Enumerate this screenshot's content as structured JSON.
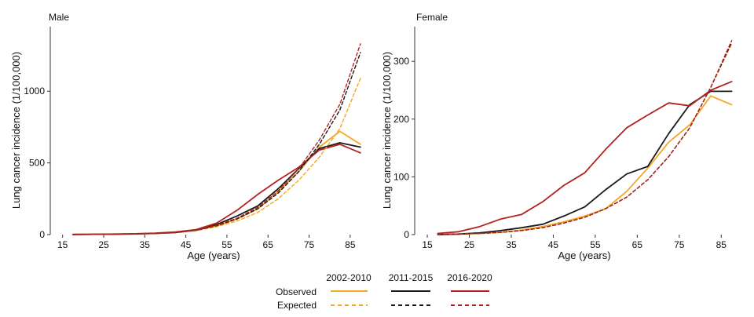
{
  "chart_data": [
    {
      "type": "line",
      "title": "Male",
      "xlabel": "Age (years)",
      "ylabel": "Lung cancer incidence (1/100,000)",
      "xlim": [
        12,
        90
      ],
      "ylim": [
        0,
        1450
      ],
      "xticks": [
        15,
        25,
        35,
        45,
        55,
        65,
        75,
        85
      ],
      "yticks": [
        0,
        500,
        1000
      ],
      "grid": false,
      "x": [
        17.5,
        22.5,
        27.5,
        32.5,
        37.5,
        42.5,
        47.5,
        52.5,
        57.5,
        62.5,
        67.5,
        72.5,
        77.5,
        82.5,
        87.5
      ],
      "series": [
        {
          "name": "2002-2010",
          "style": "observed",
          "color": "#F5A623",
          "values": [
            1,
            2,
            3,
            5,
            8,
            15,
            30,
            60,
            110,
            180,
            300,
            440,
            610,
            720,
            630
          ]
        },
        {
          "name": "2011-2015",
          "style": "observed",
          "color": "#1a1a1a",
          "values": [
            1,
            2,
            3,
            5,
            8,
            15,
            32,
            70,
            130,
            200,
            320,
            460,
            600,
            640,
            610
          ]
        },
        {
          "name": "2016-2020",
          "style": "observed",
          "color": "#B22222",
          "values": [
            1,
            2,
            4,
            6,
            10,
            18,
            35,
            80,
            170,
            280,
            380,
            470,
            590,
            630,
            570
          ]
        },
        {
          "name": "2002-2010",
          "style": "expected",
          "color": "#F5A623",
          "values": [
            1,
            2,
            3,
            5,
            8,
            14,
            28,
            55,
            95,
            155,
            250,
            380,
            540,
            740,
            1090
          ]
        },
        {
          "name": "2011-2015",
          "style": "expected",
          "color": "#1a1a1a",
          "values": [
            1,
            2,
            3,
            5,
            8,
            15,
            30,
            62,
            110,
            180,
            290,
            440,
            630,
            870,
            1270
          ]
        },
        {
          "name": "2016-2020",
          "style": "expected",
          "color": "#B22222",
          "values": [
            1,
            2,
            3,
            5,
            8,
            15,
            32,
            65,
            115,
            190,
            305,
            460,
            660,
            910,
            1330
          ]
        }
      ]
    },
    {
      "type": "line",
      "title": "Female",
      "xlabel": "Age (years)",
      "ylabel": "Lung cancer incidence (1/100,000)",
      "xlim": [
        12,
        90
      ],
      "ylim": [
        0,
        360
      ],
      "xticks": [
        15,
        25,
        35,
        45,
        55,
        65,
        75,
        85
      ],
      "yticks": [
        0,
        100,
        200,
        300
      ],
      "grid": false,
      "x": [
        17.5,
        22.5,
        27.5,
        32.5,
        37.5,
        42.5,
        47.5,
        52.5,
        57.5,
        62.5,
        67.5,
        72.5,
        77.5,
        82.5,
        87.5
      ],
      "series": [
        {
          "name": "2002-2010",
          "style": "observed",
          "color": "#F5A623",
          "values": [
            0,
            1,
            2,
            4,
            8,
            14,
            22,
            32,
            45,
            75,
            115,
            160,
            190,
            240,
            225
          ]
        },
        {
          "name": "2011-2015",
          "style": "observed",
          "color": "#1a1a1a",
          "values": [
            0,
            1,
            3,
            7,
            12,
            18,
            32,
            48,
            78,
            105,
            118,
            175,
            225,
            248,
            248
          ]
        },
        {
          "name": "2016-2020",
          "style": "observed",
          "color": "#B22222",
          "values": [
            2,
            5,
            14,
            27,
            35,
            57,
            85,
            107,
            148,
            185,
            207,
            228,
            223,
            250,
            265
          ]
        },
        {
          "name": "2002-2010",
          "style": "expected",
          "color": "#F5A623",
          "values": [
            0,
            1,
            2,
            4,
            7,
            12,
            20,
            30,
            45,
            65,
            95,
            135,
            185,
            255,
            330
          ]
        },
        {
          "name": "2011-2015",
          "style": "expected",
          "color": "#1a1a1a",
          "values": [
            0,
            1,
            2,
            4,
            7,
            12,
            20,
            30,
            45,
            65,
            95,
            135,
            185,
            255,
            333
          ]
        },
        {
          "name": "2016-2020",
          "style": "expected",
          "color": "#B22222",
          "values": [
            0,
            1,
            2,
            4,
            7,
            12,
            20,
            30,
            45,
            65,
            95,
            135,
            185,
            255,
            336
          ]
        }
      ]
    }
  ],
  "legend": {
    "placement": "bottom-center",
    "periods": [
      "2002-2010",
      "2011-2015",
      "2016-2020"
    ],
    "row_labels": [
      "Observed",
      "Expected"
    ]
  }
}
